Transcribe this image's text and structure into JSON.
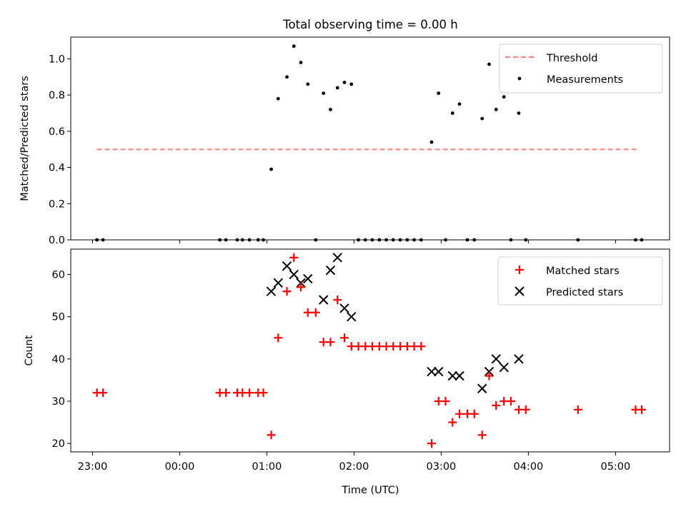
{
  "chart_data": [
    {
      "type": "scatter",
      "title": "Total observing time = 0.00 h",
      "xlabel": "",
      "ylabel": "Matched/Predicted stars",
      "ylim": [
        0,
        1.12
      ],
      "yticks": [
        0.0,
        0.2,
        0.4,
        0.6,
        0.8,
        1.0
      ],
      "ytick_labels": [
        "0.0",
        "0.2",
        "0.4",
        "0.6",
        "0.8",
        "1.0"
      ],
      "x_units": "hours relative to 00:00 UTC",
      "xlim": [
        -1.25,
        5.62
      ],
      "legend_placement": "upper-right",
      "grid": false,
      "series": [
        {
          "name": "Threshold",
          "kind": "line",
          "style": "dashed",
          "color": "#ff7f7f",
          "x": [
            -0.95,
            5.25
          ],
          "y": [
            0.5,
            0.5
          ]
        },
        {
          "name": "Measurements",
          "kind": "scatter",
          "color": "#000000",
          "x": [
            -0.95,
            -0.88,
            0.46,
            0.53,
            0.66,
            0.72,
            0.8,
            0.9,
            0.96,
            1.05,
            1.13,
            1.23,
            1.31,
            1.39,
            1.47,
            1.56,
            1.65,
            1.73,
            1.81,
            1.89,
            1.97,
            2.05,
            2.13,
            2.21,
            2.29,
            2.37,
            2.45,
            2.53,
            2.61,
            2.69,
            2.77,
            2.89,
            2.97,
            3.05,
            3.13,
            3.21,
            3.3,
            3.38,
            3.47,
            3.55,
            3.63,
            3.72,
            3.8,
            3.89,
            3.97,
            4.57,
            5.23,
            5.3
          ],
          "y": [
            0.0,
            0.0,
            0.0,
            0.0,
            0.0,
            0.0,
            0.0,
            0.0,
            0.0,
            0.39,
            0.78,
            0.9,
            1.07,
            0.98,
            0.86,
            0.0,
            0.81,
            0.72,
            0.84,
            0.87,
            0.86,
            0.0,
            0.0,
            0.0,
            0.0,
            0.0,
            0.0,
            0.0,
            0.0,
            0.0,
            0.0,
            0.54,
            0.81,
            0.0,
            0.7,
            0.75,
            0.0,
            0.0,
            0.67,
            0.97,
            0.72,
            0.79,
            0.0,
            0.7,
            0.0,
            0.0,
            0.0,
            0.0
          ]
        }
      ]
    },
    {
      "type": "scatter",
      "title": "",
      "xlabel": "Time (UTC)",
      "ylabel": "Count",
      "ylim": [
        18,
        66
      ],
      "yticks": [
        20,
        30,
        40,
        50,
        60
      ],
      "ytick_labels": [
        "20",
        "30",
        "40",
        "50",
        "60"
      ],
      "x_units": "hours relative to 00:00 UTC",
      "xlim": [
        -1.25,
        5.62
      ],
      "xticks": [
        -1,
        0,
        1,
        2,
        3,
        4,
        5
      ],
      "xtick_labels": [
        "23:00",
        "00:00",
        "01:00",
        "02:00",
        "03:00",
        "04:00",
        "05:00"
      ],
      "legend_placement": "upper-right",
      "grid": false,
      "series": [
        {
          "name": "Matched stars",
          "marker": "plus",
          "color": "#ff0000",
          "x": [
            -0.95,
            -0.88,
            0.46,
            0.53,
            0.66,
            0.72,
            0.8,
            0.9,
            0.96,
            1.05,
            1.13,
            1.23,
            1.31,
            1.39,
            1.47,
            1.56,
            1.65,
            1.73,
            1.81,
            1.89,
            1.97,
            2.05,
            2.13,
            2.21,
            2.29,
            2.37,
            2.45,
            2.53,
            2.61,
            2.69,
            2.77,
            2.89,
            2.97,
            3.05,
            3.13,
            3.21,
            3.3,
            3.38,
            3.47,
            3.55,
            3.63,
            3.72,
            3.8,
            3.89,
            3.97,
            4.57,
            5.23,
            5.3
          ],
          "y": [
            32,
            32,
            32,
            32,
            32,
            32,
            32,
            32,
            32,
            22,
            45,
            56,
            64,
            57,
            51,
            51,
            44,
            44,
            54,
            45,
            43,
            43,
            43,
            43,
            43,
            43,
            43,
            43,
            43,
            43,
            43,
            20,
            30,
            30,
            25,
            27,
            27,
            27,
            22,
            36,
            29,
            30,
            30,
            28,
            28,
            28,
            28,
            28
          ]
        },
        {
          "name": "Predicted stars",
          "marker": "x",
          "color": "#000000",
          "x": [
            1.05,
            1.13,
            1.23,
            1.31,
            1.39,
            1.47,
            1.65,
            1.73,
            1.81,
            1.89,
            1.97,
            2.89,
            2.97,
            3.13,
            3.21,
            3.47,
            3.55,
            3.63,
            3.72,
            3.89
          ],
          "y": [
            56,
            58,
            62,
            60,
            58,
            59,
            54,
            61,
            64,
            52,
            50,
            37,
            37,
            36,
            36,
            33,
            37,
            40,
            38,
            40
          ]
        }
      ]
    }
  ]
}
